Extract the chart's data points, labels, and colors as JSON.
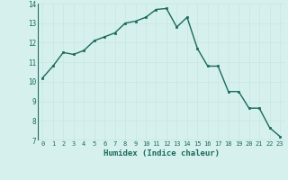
{
  "xlabel": "Humidex (Indice chaleur)",
  "x": [
    0,
    1,
    2,
    3,
    4,
    5,
    6,
    7,
    8,
    9,
    10,
    11,
    12,
    13,
    14,
    15,
    16,
    17,
    18,
    19,
    20,
    21,
    22,
    23
  ],
  "y": [
    10.2,
    10.8,
    11.5,
    11.4,
    11.6,
    12.1,
    12.3,
    12.5,
    13.0,
    13.1,
    13.3,
    13.7,
    13.75,
    12.8,
    13.3,
    11.7,
    10.8,
    10.8,
    9.5,
    9.5,
    8.65,
    8.65,
    7.65,
    7.2
  ],
  "ylim": [
    7,
    14
  ],
  "xlim": [
    -0.5,
    23.5
  ],
  "yticks": [
    7,
    8,
    9,
    10,
    11,
    12,
    13,
    14
  ],
  "xticks": [
    0,
    1,
    2,
    3,
    4,
    5,
    6,
    7,
    8,
    9,
    10,
    11,
    12,
    13,
    14,
    15,
    16,
    17,
    18,
    19,
    20,
    21,
    22,
    23
  ],
  "line_color": "#1a6b5a",
  "marker_color": "#1a6b5a",
  "bg_color": "#d6f0ee",
  "grid_color": "#c8e8e4",
  "tick_label_color": "#1a6b5a",
  "xlabel_color": "#1a6b5a"
}
